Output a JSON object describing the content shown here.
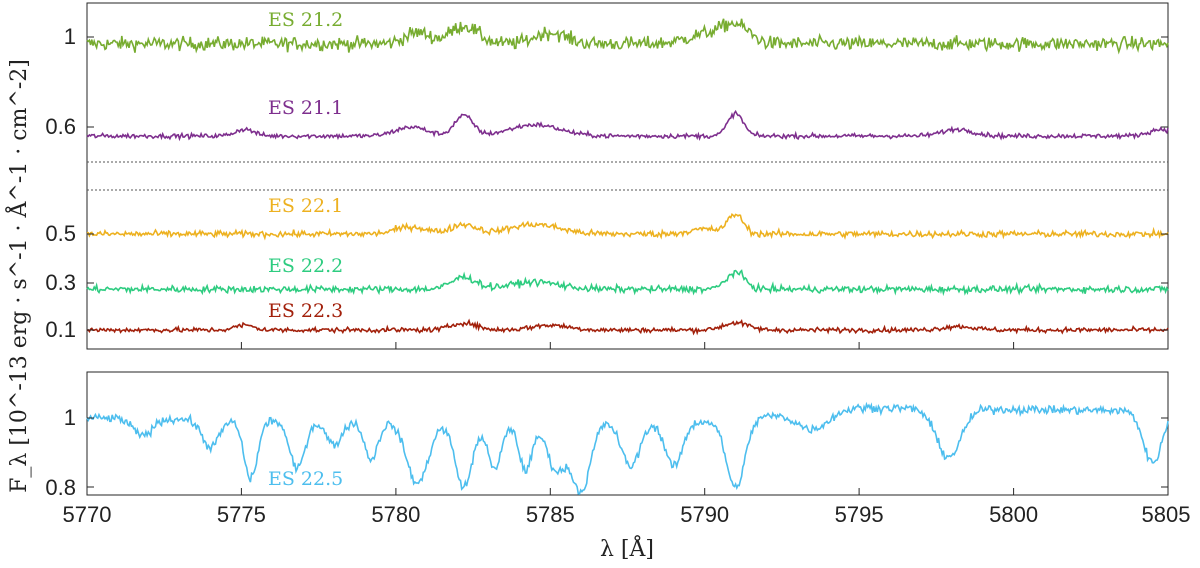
{
  "chart_data": [
    {
      "type": "line",
      "panel": "top",
      "title": "",
      "xlim": [
        5770,
        5805
      ],
      "grid": false,
      "legend": "none",
      "y_tick_labels": [
        "1",
        "0.6",
        "0.5",
        "0.3",
        "0.1"
      ],
      "separator_lines": "dotted",
      "series": [
        {
          "name": "ES 21.2",
          "color": "#77AC30",
          "baseline": 0.97,
          "noise": 0.03,
          "features": [
            [
              5780.7,
              0.05,
              0.4
            ],
            [
              5782.2,
              0.08,
              0.45
            ],
            [
              5785.0,
              0.05,
              0.5
            ],
            [
              5790.0,
              0.04,
              0.6
            ],
            [
              5791.0,
              0.08,
              0.45
            ]
          ]
        },
        {
          "name": "ES 21.1",
          "color": "#7E2F8E",
          "baseline": 0.56,
          "noise": 0.01,
          "features": [
            [
              5775.1,
              0.03,
              0.3
            ],
            [
              5780.5,
              0.04,
              0.5
            ],
            [
              5782.2,
              0.09,
              0.3
            ],
            [
              5784.5,
              0.05,
              0.8
            ],
            [
              5791.0,
              0.1,
              0.25
            ],
            [
              5798.2,
              0.03,
              0.5
            ],
            [
              5804.8,
              0.03,
              0.4
            ]
          ]
        },
        {
          "name": "ES 22.1",
          "color": "#EDB120",
          "baseline": 0.5,
          "noise": 0.013,
          "features": [
            [
              5780.5,
              0.03,
              0.5
            ],
            [
              5782.2,
              0.04,
              0.4
            ],
            [
              5784.5,
              0.04,
              0.8
            ],
            [
              5790.0,
              0.02,
              0.5
            ],
            [
              5791.0,
              0.08,
              0.25
            ]
          ]
        },
        {
          "name": "ES 22.2",
          "color": "#2ECC80",
          "baseline": 0.27,
          "noise": 0.014,
          "features": [
            [
              5782.2,
              0.05,
              0.4
            ],
            [
              5784.5,
              0.03,
              0.8
            ],
            [
              5791.0,
              0.07,
              0.3
            ]
          ]
        },
        {
          "name": "ES 22.3",
          "color": "#A2200B",
          "baseline": 0.1,
          "noise": 0.01,
          "features": [
            [
              5775.1,
              0.02,
              0.3
            ],
            [
              5782.2,
              0.03,
              0.4
            ],
            [
              5785.0,
              0.02,
              0.6
            ],
            [
              5791.0,
              0.03,
              0.4
            ],
            [
              5798.2,
              0.015,
              0.5
            ]
          ]
        }
      ]
    },
    {
      "type": "line",
      "panel": "bottom",
      "title": "",
      "xlabel": "λ [Å]",
      "ylabel": "F_λ [10^-13 erg · s^-1 · Å^-1 · cm^-2]",
      "xlim": [
        5770,
        5805
      ],
      "ylim": [
        0.77,
        1.13
      ],
      "grid": false,
      "legend": "none",
      "x_tick_labels": [
        "5770",
        "5775",
        "5780",
        "5785",
        "5790",
        "5795",
        "5800",
        "5805"
      ],
      "y_tick_labels": [
        "1",
        "0.8"
      ],
      "series": [
        {
          "name": "ES 22.5",
          "color": "#4DBEEE",
          "baseline": 1.0,
          "noise": 0.012,
          "continuum": [
            [
              5770,
              1.0
            ],
            [
              5780,
              0.99
            ],
            [
              5790,
              0.99
            ],
            [
              5795,
              1.03
            ],
            [
              5805,
              1.02
            ]
          ],
          "absorption": [
            [
              5771.8,
              0.05,
              0.3
            ],
            [
              5774.0,
              0.08,
              0.28
            ],
            [
              5775.3,
              0.17,
              0.22
            ],
            [
              5776.8,
              0.14,
              0.25
            ],
            [
              5778.0,
              0.07,
              0.25
            ],
            [
              5779.2,
              0.11,
              0.22
            ],
            [
              5780.7,
              0.18,
              0.35
            ],
            [
              5782.2,
              0.19,
              0.28
            ],
            [
              5783.2,
              0.14,
              0.22
            ],
            [
              5784.2,
              0.14,
              0.22
            ],
            [
              5785.2,
              0.14,
              0.3
            ],
            [
              5786.0,
              0.2,
              0.3
            ],
            [
              5787.6,
              0.13,
              0.3
            ],
            [
              5789.0,
              0.13,
              0.28
            ],
            [
              5791.0,
              0.2,
              0.3
            ],
            [
              5793.5,
              0.05,
              0.5
            ],
            [
              5797.9,
              0.14,
              0.4
            ],
            [
              5804.5,
              0.15,
              0.3
            ]
          ]
        }
      ]
    }
  ]
}
